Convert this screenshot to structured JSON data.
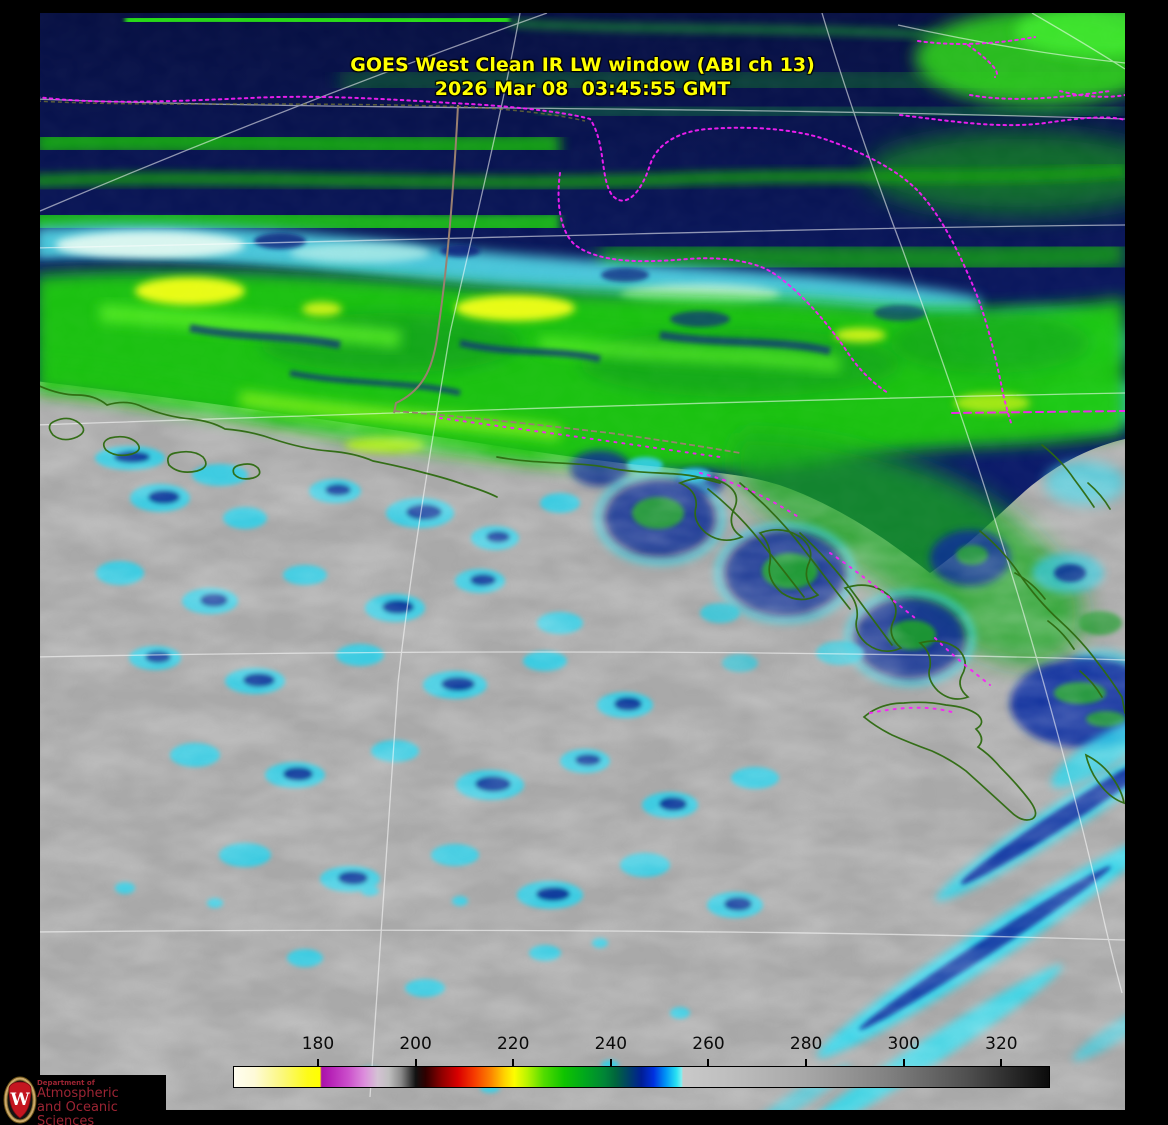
{
  "title": {
    "line1": "GOES West Clean IR LW window (ABI ch 13)",
    "line2": "2026 Mar 08  03:45:55 GMT",
    "color": "#ffff00"
  },
  "colorbar": {
    "ticks": [
      {
        "label": "180",
        "pct": 10.4
      },
      {
        "label": "200",
        "pct": 22.35
      },
      {
        "label": "220",
        "pct": 34.3
      },
      {
        "label": "240",
        "pct": 46.25
      },
      {
        "label": "260",
        "pct": 58.2
      },
      {
        "label": "280",
        "pct": 70.15
      },
      {
        "label": "300",
        "pct": 82.1
      },
      {
        "label": "320",
        "pct": 94.05
      }
    ],
    "gradient_stops": [
      [
        "#fffdf0",
        0
      ],
      [
        "#fefad8",
        2.5
      ],
      [
        "#fbf87a",
        6
      ],
      [
        "#fdfb18",
        9
      ],
      [
        "#ffff00",
        10.55
      ],
      [
        "#a912a9",
        10.75
      ],
      [
        "#b825b8",
        12
      ],
      [
        "#cb4fcb",
        14
      ],
      [
        "#dc8edc",
        16
      ],
      [
        "#d4c2d4",
        17.6
      ],
      [
        "#bfbfbf",
        19
      ],
      [
        "#8a8a8a",
        20.5
      ],
      [
        "#111111",
        22.3
      ],
      [
        "#2f0000",
        23.5
      ],
      [
        "#8f0000",
        25.5
      ],
      [
        "#d90000",
        27.5
      ],
      [
        "#f63b00",
        29.5
      ],
      [
        "#fc8400",
        31.5
      ],
      [
        "#ffd300",
        33.2
      ],
      [
        "#fdfd00",
        34.4
      ],
      [
        "#b8f400",
        36
      ],
      [
        "#52dc00",
        38
      ],
      [
        "#0fc400",
        40.5
      ],
      [
        "#00a81c",
        43
      ],
      [
        "#008437",
        45.5
      ],
      [
        "#00663c",
        46.8
      ],
      [
        "#003f68",
        48.5
      ],
      [
        "#001e96",
        50
      ],
      [
        "#0031e0",
        51.5
      ],
      [
        "#0096f6",
        53
      ],
      [
        "#2ae2f2",
        54.3
      ],
      [
        "#7ff0f2",
        54.9
      ],
      [
        "#c9c9c9",
        55.1
      ],
      [
        "#c0c0c0",
        60
      ],
      [
        "#a8a8a8",
        70
      ],
      [
        "#828282",
        80
      ],
      [
        "#4f4f4f",
        90
      ],
      [
        "#262626",
        96
      ],
      [
        "#0b0b0b",
        100
      ]
    ]
  },
  "logo": {
    "dept": "Department of",
    "line1": "Atmospheric",
    "line2": "and Oceanic Sciences",
    "crest_letter": "W"
  },
  "colors": {
    "title_yellow": "#ffff00",
    "label_black": "#0a0a0a",
    "logo_red": "#9c2433",
    "frame_black": "#000000",
    "graticule_white": "#ffffff",
    "border_magenta": "#fb1efb",
    "coast_green": "#2e6b10",
    "border_brown": "#9a8070"
  }
}
